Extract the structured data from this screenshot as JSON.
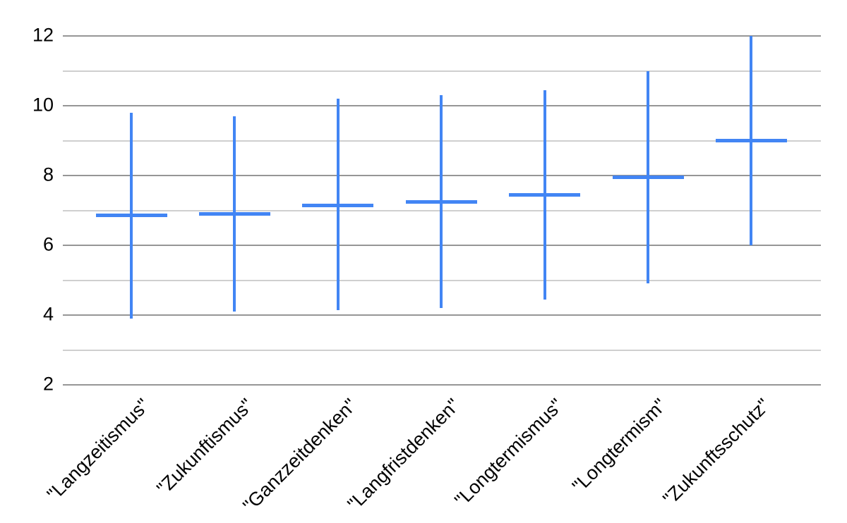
{
  "chart_data": {
    "type": "error-bar",
    "title": "",
    "xlabel": "",
    "ylabel": "",
    "categories": [
      "\"Langzeitismus\"",
      "\"Zukunftismus\"",
      "\"Ganzzeitdenken\"",
      "\"Langfristdenken\"",
      "\"Longtermismus\"",
      "\"Longtermism\"",
      "\"Zukunftsschutz\""
    ],
    "series": [
      {
        "name": "low",
        "values": [
          3.9,
          4.1,
          4.15,
          4.2,
          4.45,
          4.9,
          6.0
        ]
      },
      {
        "name": "mean",
        "values": [
          6.85,
          6.9,
          7.15,
          7.25,
          7.45,
          7.95,
          9.0
        ]
      },
      {
        "name": "high",
        "values": [
          9.8,
          9.7,
          10.2,
          10.3,
          10.45,
          11.0,
          12.0
        ]
      }
    ],
    "ylim": [
      2,
      12
    ],
    "yticks_major": [
      2,
      4,
      6,
      8,
      10,
      12
    ],
    "yticks_minor": [
      3,
      5,
      7,
      9,
      11
    ],
    "grid": true,
    "legend": "none",
    "mark_style": "vertical range line with centered horizontal mean tick per category",
    "colors": {
      "series": "#4285f4",
      "grid_major": "#969696",
      "grid_minor": "#cfcfcf",
      "text": "#000000",
      "background": "#ffffff"
    }
  }
}
